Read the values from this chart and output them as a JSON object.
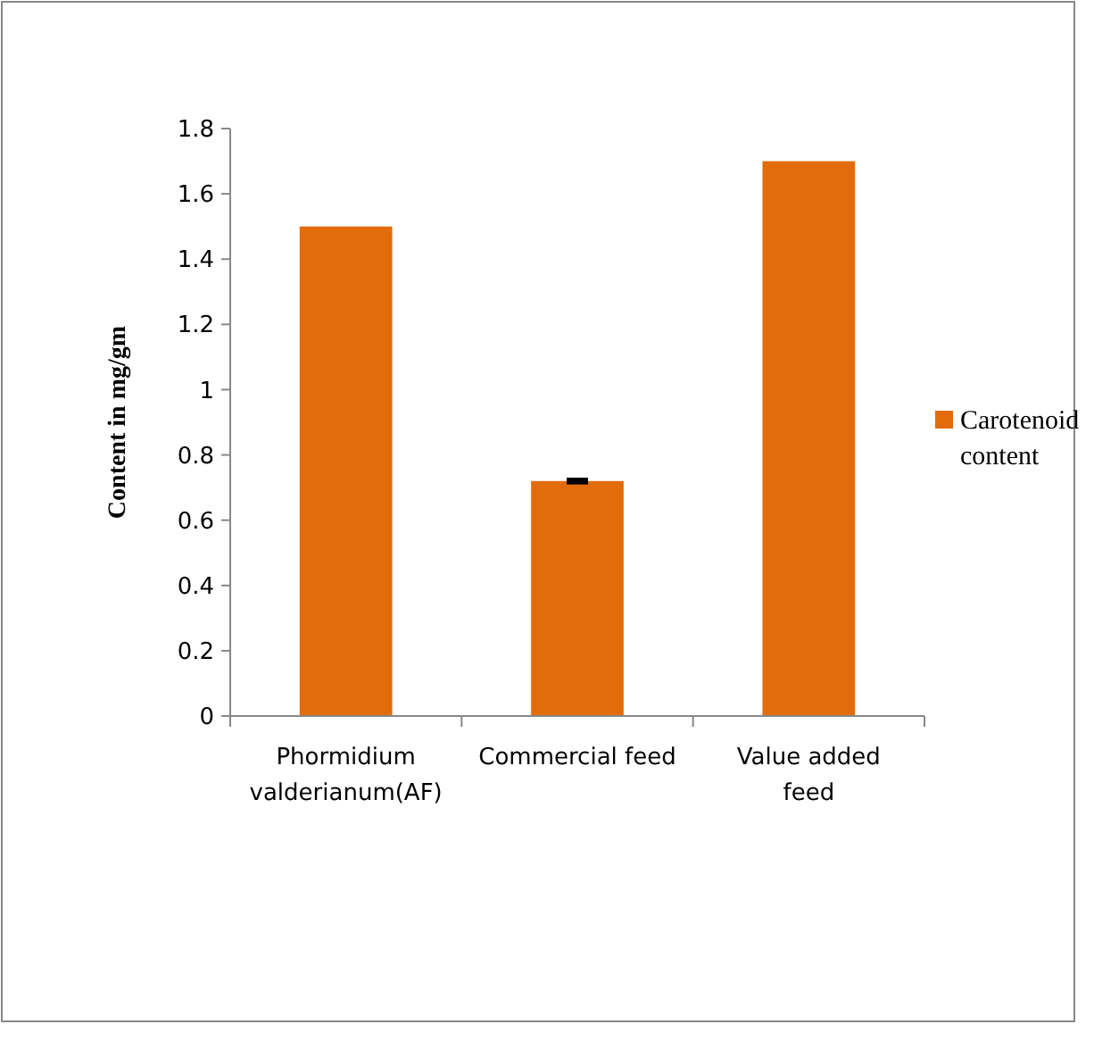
{
  "chart_data": {
    "type": "bar",
    "ylabel": "Content in mg/gm",
    "categories": [
      "Phormidium valderianum(AF)",
      "Commercial feed",
      "Value added feed"
    ],
    "series": [
      {
        "name": "Carotenoid content",
        "color": "#e36c0a",
        "values": [
          1.5,
          0.72,
          1.7
        ],
        "errors": [
          null,
          0.005,
          null
        ]
      }
    ],
    "ylim": [
      0,
      1.8
    ],
    "yticks": [
      0,
      {
        "value": 0.2,
        "label": "0.2"
      },
      {
        "value": 0.4,
        "label": "0.4"
      },
      {
        "value": 0.6,
        "label": "0.6"
      },
      {
        "value": 0.8,
        "label": "0.8"
      },
      1,
      {
        "value": 1.2,
        "label": "1.2"
      },
      {
        "value": 1.4,
        "label": "1.4"
      },
      {
        "value": 1.6,
        "label": "1.6"
      },
      {
        "value": 1.8,
        "label": "1.8"
      }
    ],
    "grid": false,
    "legend": "right"
  }
}
